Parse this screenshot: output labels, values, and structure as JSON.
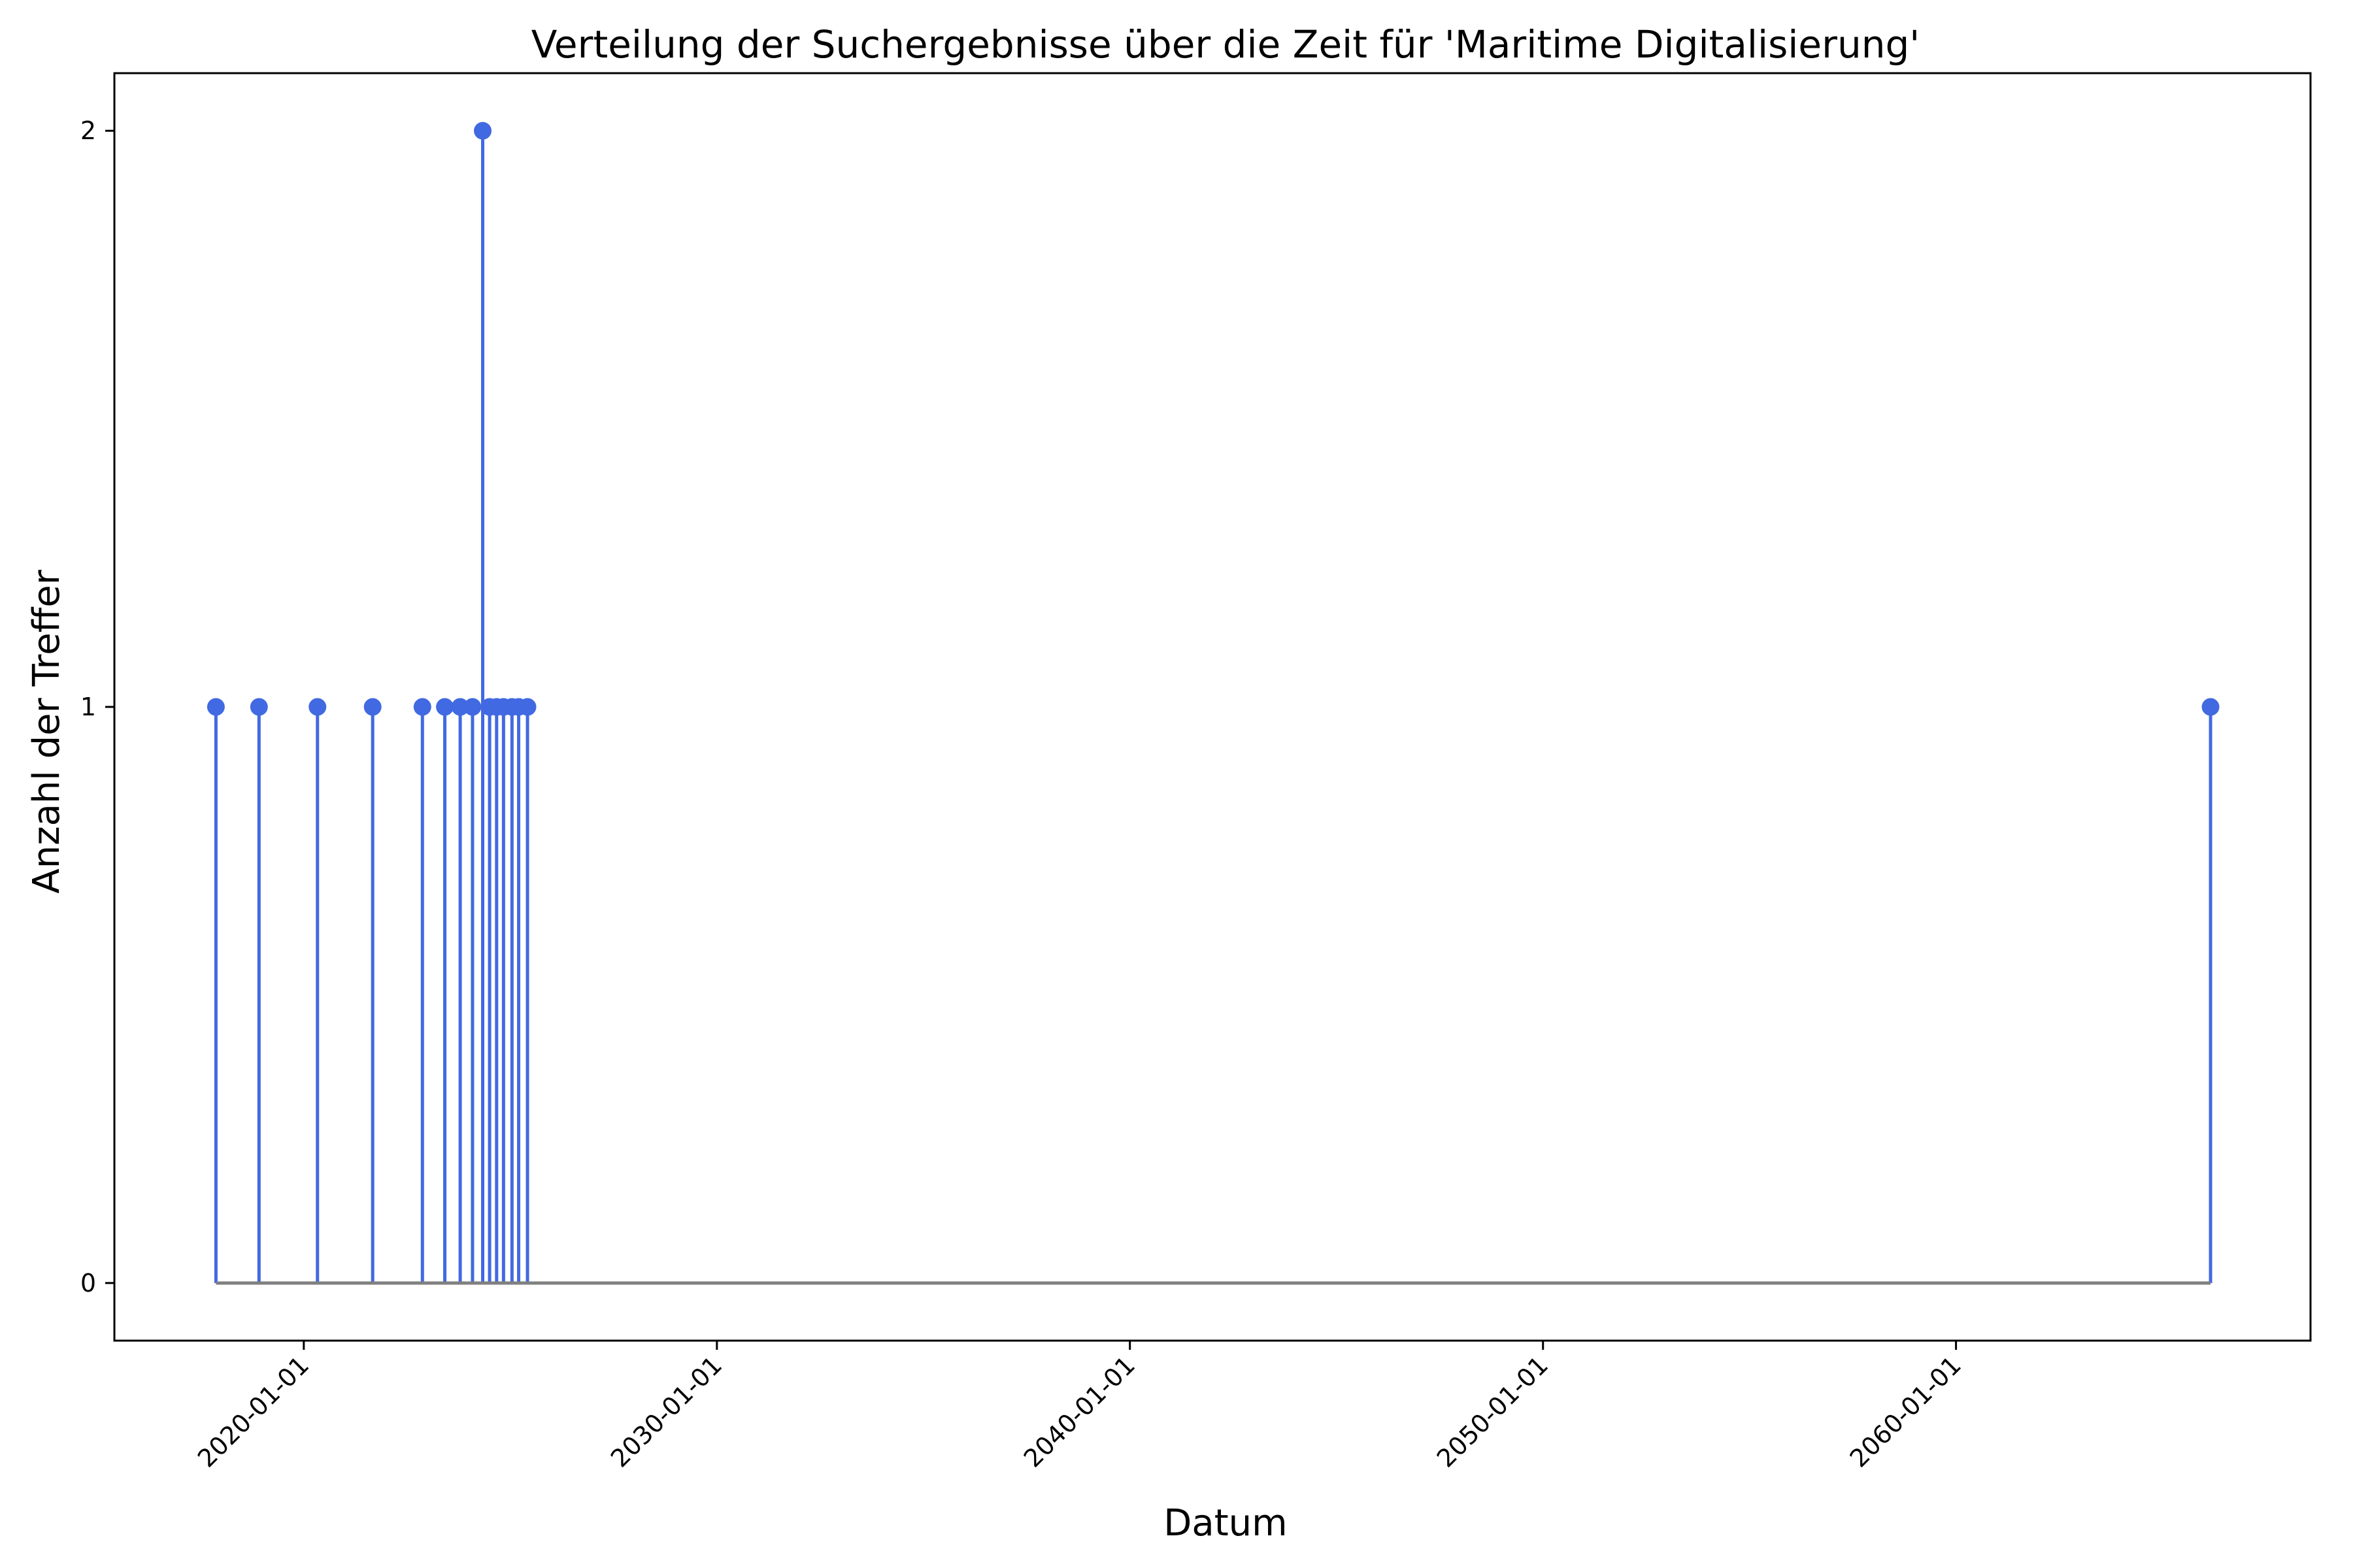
{
  "chart_data": {
    "type": "stem",
    "title": "Verteilung der Suchergebnisse über die Zeit für 'Maritime Digitalisierung'",
    "xlabel": "Datum",
    "ylabel": "Anzahl der Treffer",
    "x_ticks": [
      "2020-01-01",
      "2030-01-01",
      "2040-01-01",
      "2050-01-01",
      "2060-01-01"
    ],
    "y_ticks": [
      0,
      1,
      2
    ],
    "xlim": [
      "2015-06-01",
      "2068-08-01"
    ],
    "ylim": [
      -0.1,
      2.1
    ],
    "grid": false,
    "points": [
      {
        "x": "2017-11-15",
        "y": 1
      },
      {
        "x": "2018-12-01",
        "y": 1
      },
      {
        "x": "2020-05-01",
        "y": 1
      },
      {
        "x": "2021-09-01",
        "y": 1
      },
      {
        "x": "2022-11-15",
        "y": 1
      },
      {
        "x": "2023-06-01",
        "y": 1
      },
      {
        "x": "2023-10-15",
        "y": 1
      },
      {
        "x": "2024-02-01",
        "y": 1
      },
      {
        "x": "2024-05-01",
        "y": 2
      },
      {
        "x": "2024-07-01",
        "y": 1
      },
      {
        "x": "2024-09-01",
        "y": 1
      },
      {
        "x": "2024-11-01",
        "y": 1
      },
      {
        "x": "2025-01-15",
        "y": 1
      },
      {
        "x": "2025-03-15",
        "y": 1
      },
      {
        "x": "2025-06-01",
        "y": 1
      },
      {
        "x": "2066-03-01",
        "y": 1
      }
    ],
    "colors": {
      "stem": "#4169e1",
      "marker": "#4169e1",
      "baseline": "#808080"
    }
  }
}
